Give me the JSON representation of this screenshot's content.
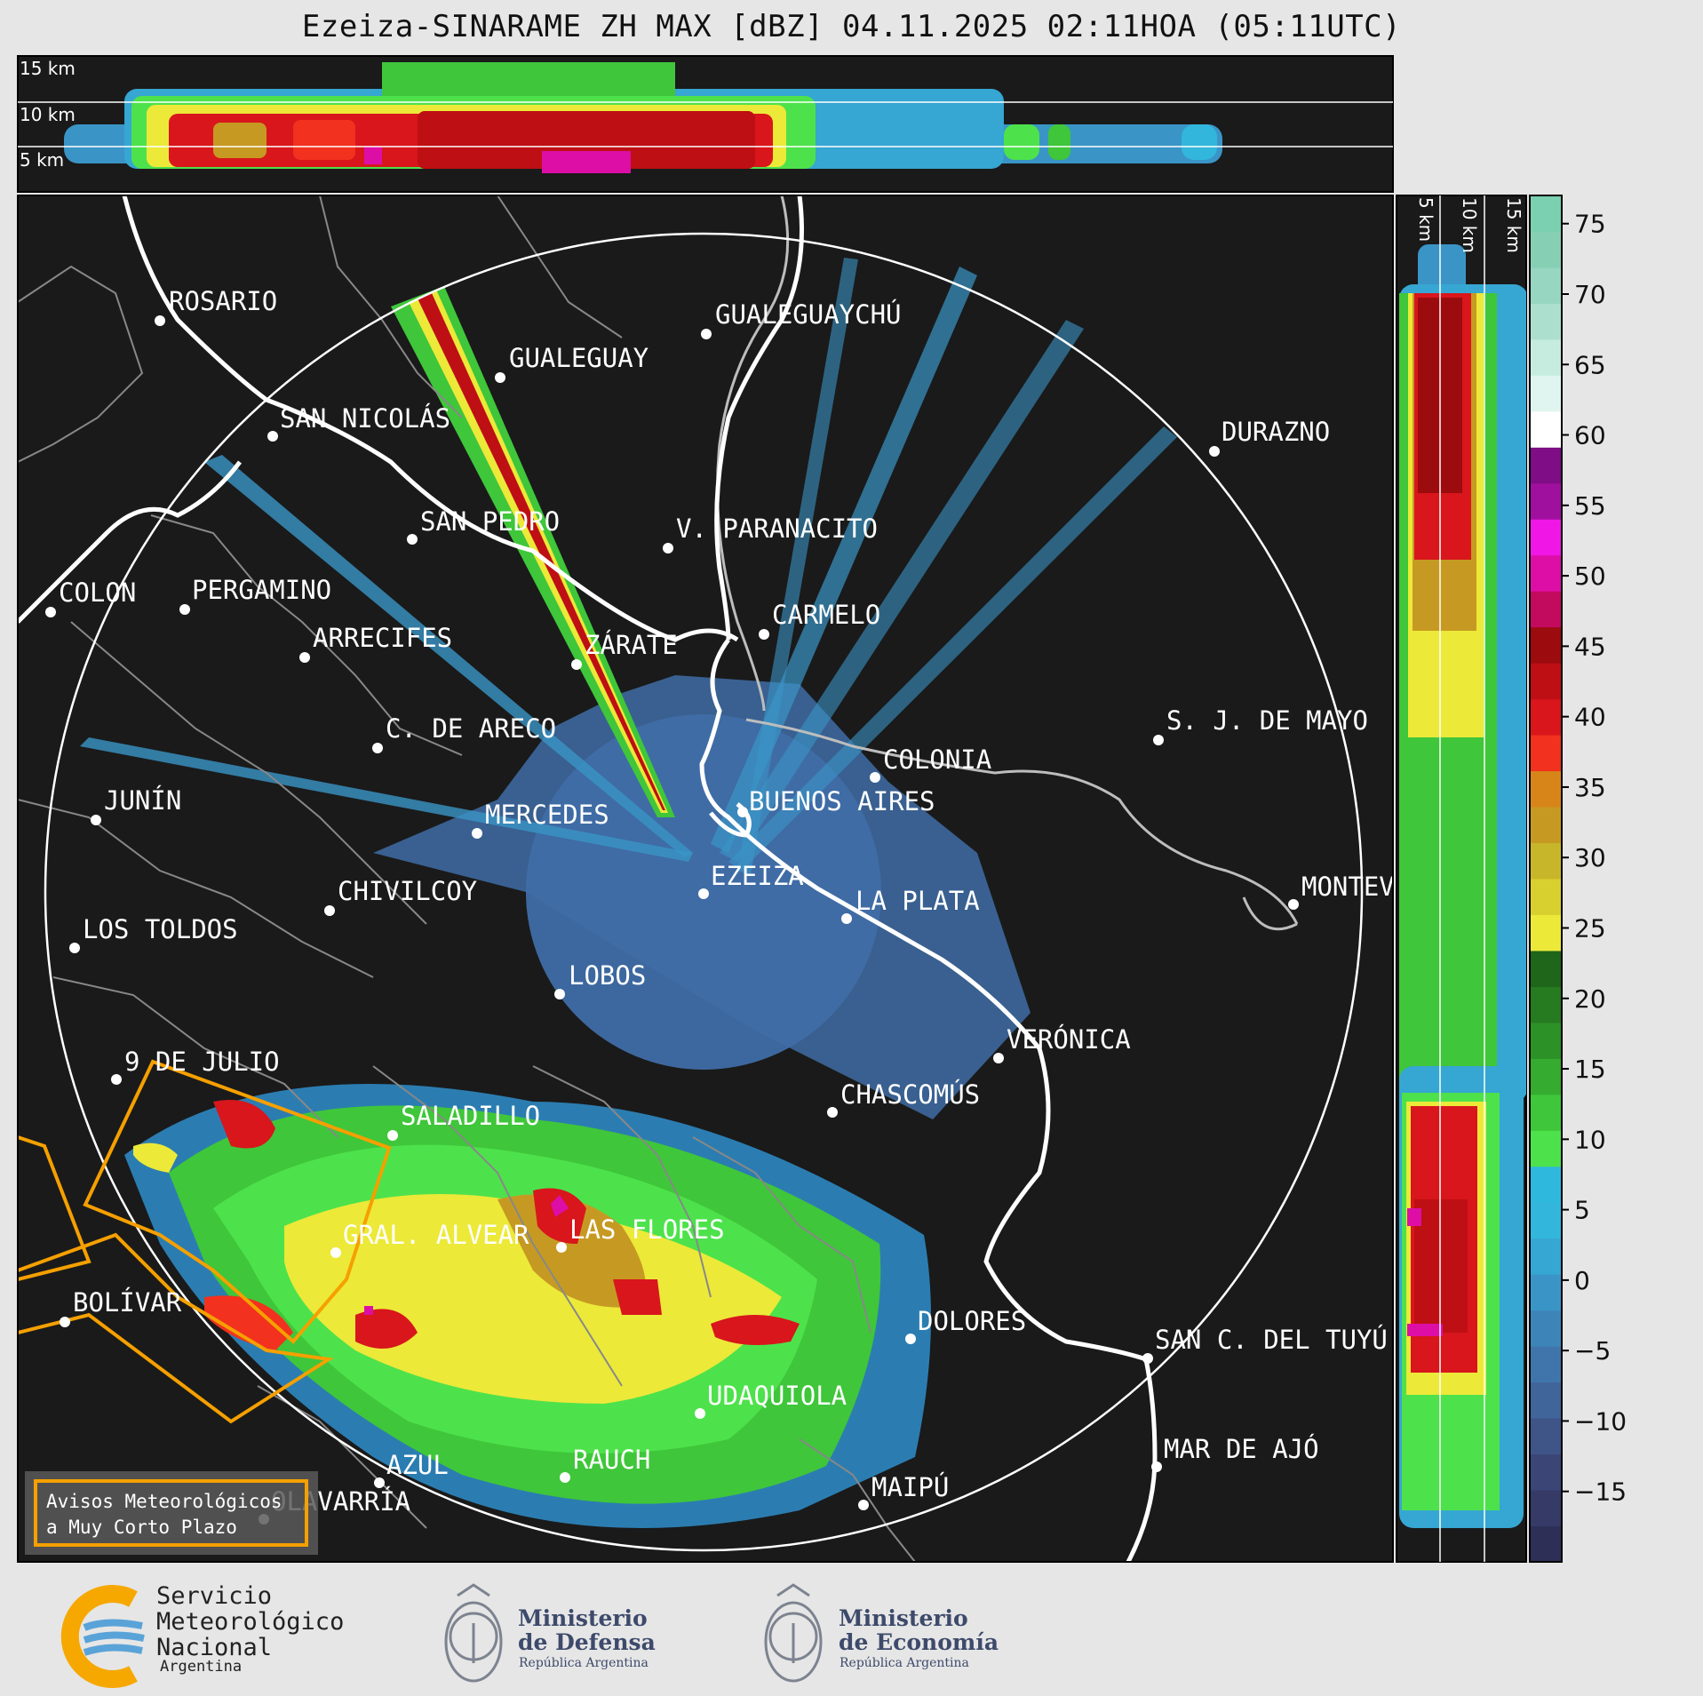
{
  "title": "Ezeiza-SINARAME ZH MAX [dBZ] 04.11.2025 02:11HOA (05:11UTC)",
  "top_panel": {
    "height_labels": [
      "15 km",
      "10 km",
      "5 km"
    ]
  },
  "side_panel": {
    "height_labels": [
      "5 km",
      "10 km",
      "15 km"
    ]
  },
  "colorbar": {
    "ticks": [
      "75",
      "70",
      "65",
      "60",
      "55",
      "50",
      "45",
      "40",
      "35",
      "30",
      "25",
      "20",
      "15",
      "10",
      "5",
      "0",
      "−5",
      "−10",
      "−15"
    ],
    "tick_values": [
      75,
      70,
      65,
      60,
      55,
      50,
      45,
      40,
      35,
      30,
      25,
      20,
      15,
      10,
      5,
      0,
      -5,
      -10,
      -15
    ],
    "range": [
      -20,
      77
    ],
    "colors": [
      "#2d2f57",
      "#353b66",
      "#3b4677",
      "#3f5588",
      "#40659a",
      "#3f75aa",
      "#3d85b9",
      "#3a95c6",
      "#36a6d2",
      "#33b6db",
      "#2fb8dd",
      "#4de24b",
      "#3fc63a",
      "#35ab30",
      "#2c9126",
      "#267a20",
      "#1f651a",
      "#ece939",
      "#d8d02f",
      "#c8b62a",
      "#c69a22",
      "#d78519",
      "#f2311e",
      "#d8161c",
      "#be0f14",
      "#9c0b0e",
      "#c20a5f",
      "#dd0ea6",
      "#f017e6",
      "#a0109e",
      "#7f0d85",
      "#ffffff",
      "#e0f5ef",
      "#c6ece0",
      "#addfcf",
      "#97d6c0",
      "#86cfb4",
      "#7ad0b0"
    ]
  },
  "cities": [
    "ROSARIO",
    "GUALEGUAYCHÚ",
    "GUALEGUAY",
    "SAN NICOLÁS",
    "DURAZNO",
    "SAN PEDRO",
    "V. PARANACITO",
    "COLON",
    "PERGAMINO",
    "CARMELO",
    "ARRECIFES",
    "ZÁRATE",
    "S. J. DE MAYO",
    "C. DE ARECO",
    "COLONIA",
    "JUNÍN",
    "BUENOS AIRES",
    "MERCEDES",
    "EZEIZA",
    "MONTEV",
    "CHIVILCOY",
    "LA PLATA",
    "LOS TOLDOS",
    "LOBOS",
    "VERÓNICA",
    "9 DE JULIO",
    "CHASCOMÚS",
    "SALADILLO",
    "GRAL. ALVEAR",
    "LAS FLORES",
    "BOLÍVAR",
    "DOLORES",
    "SAN C. DEL TUYÚ",
    "UDAQUIOLA",
    "AZUL",
    "RAUCH",
    "MAR DE AJÓ",
    "MAIPÚ",
    "OLAVARRÍA"
  ],
  "legend_box": {
    "line1": "Avisos Meteorológicos",
    "line2": "a Muy Corto Plazo",
    "color": "#f5a000"
  },
  "footer": {
    "smn": {
      "line1": "Servicio",
      "line2": "Meteorológico",
      "line3": "Nacional",
      "country": "Argentina"
    },
    "defensa": {
      "line1": "Ministerio",
      "line2": "de Defensa",
      "sub": "República Argentina"
    },
    "economia": {
      "line1": "Ministerio",
      "line2": "de Economía",
      "sub": "República Argentina"
    }
  },
  "colors": {
    "map_background": "#1a1a1a",
    "range_ring": "#ffffff",
    "warning_polygon": "#f5a000",
    "page_background": "#e6e6e6"
  }
}
